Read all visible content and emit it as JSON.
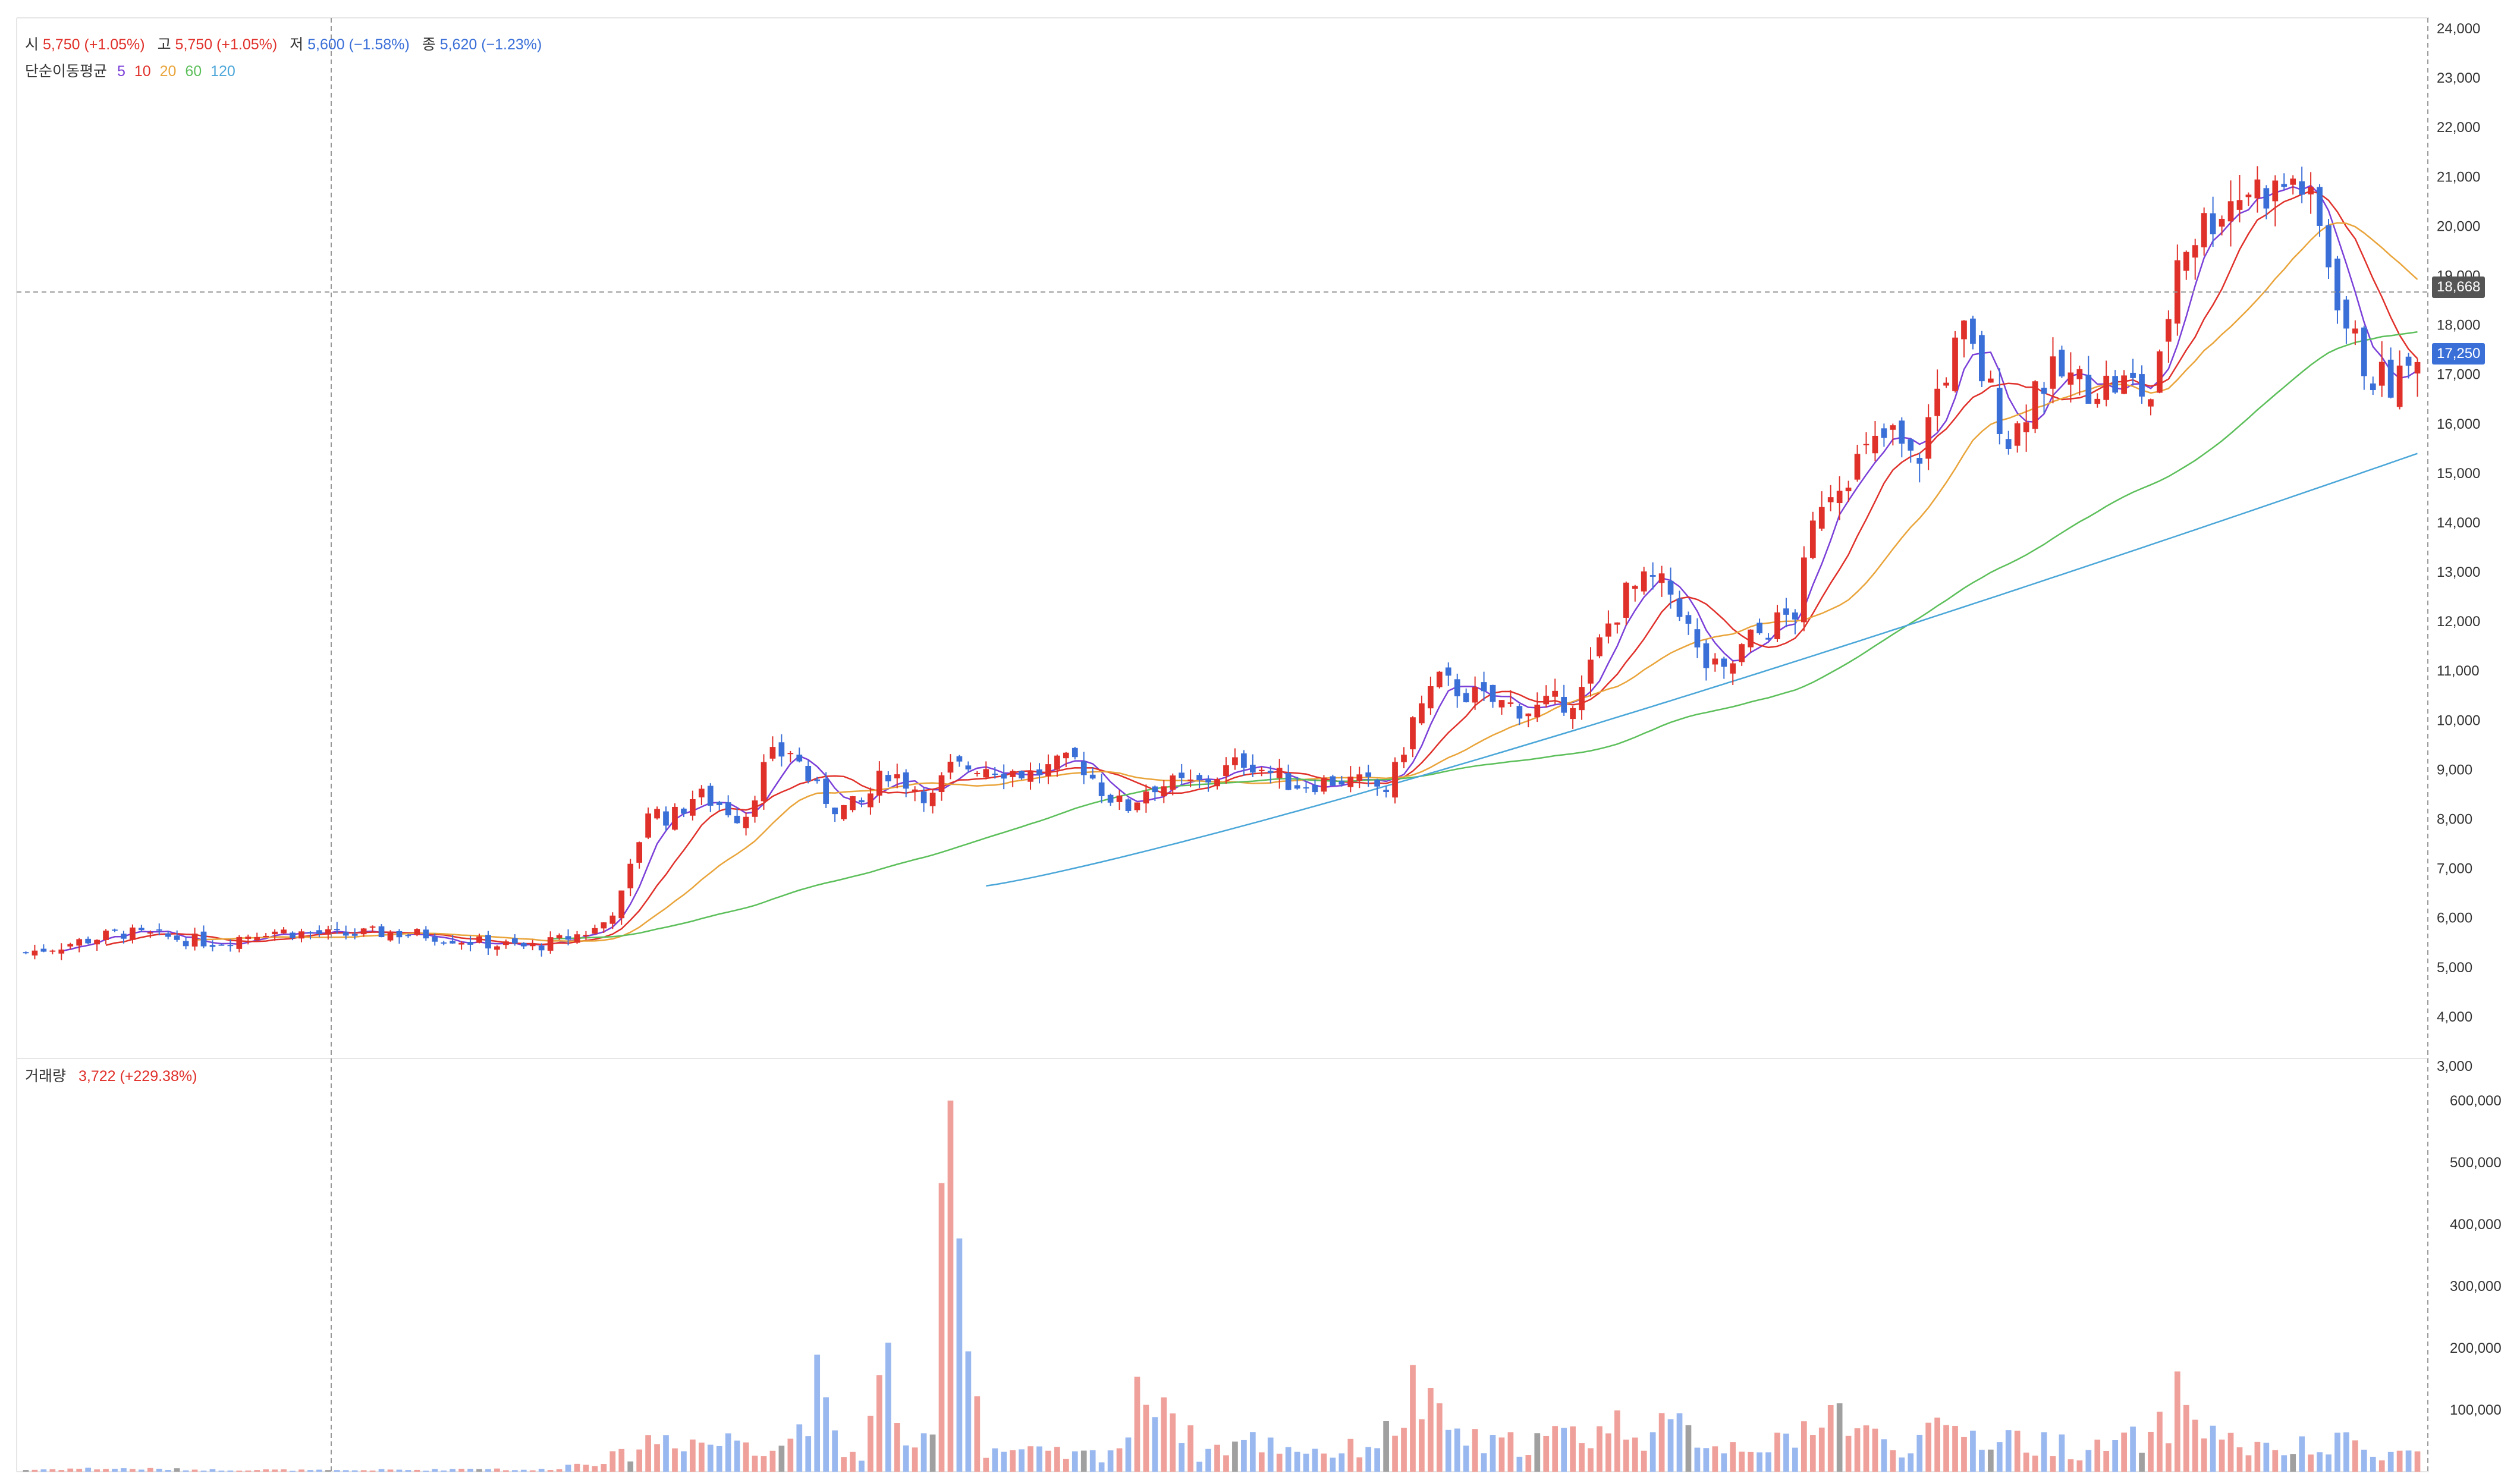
{
  "header": {
    "ohlc": [
      {
        "label": "시",
        "value": "5,750 (+1.05%)",
        "dir": "up"
      },
      {
        "label": "고",
        "value": "5,750 (+1.05%)",
        "dir": "up"
      },
      {
        "label": "저",
        "value": "5,600 (−1.58%)",
        "dir": "dn"
      },
      {
        "label": "종",
        "value": "5,620 (−1.23%)",
        "dir": "dn"
      }
    ],
    "ma_title": "단순이동평균",
    "ma_periods": [
      {
        "p": "5",
        "color": "#7a3fd8"
      },
      {
        "p": "10",
        "color": "#e0302a"
      },
      {
        "p": "20",
        "color": "#e9a43a"
      },
      {
        "p": "60",
        "color": "#5cbf5a"
      },
      {
        "p": "120",
        "color": "#4aa6d8"
      }
    ],
    "volume_title": "거래량",
    "volume_value": "3,722 (+229.38%)"
  },
  "price_axis": {
    "ticks": [
      "3,000",
      "4,000",
      "5,000",
      "6,000",
      "7,000",
      "8,000",
      "9,000",
      "10,000",
      "11,000",
      "12,000",
      "13,000",
      "14,000",
      "15,000",
      "16,000",
      "17,000",
      "18,000",
      "19,000",
      "20,000",
      "21,000",
      "22,000",
      "23,000",
      "24,000"
    ],
    "crosshair_tag": "18,668",
    "last_price_tag": "17,250"
  },
  "volume_axis": {
    "ticks": [
      "100,000",
      "200,000",
      "300,000",
      "400,000",
      "500,000",
      "600,000"
    ]
  },
  "colors": {
    "up": "#e0302a",
    "down": "#3a6fd8",
    "vol_up": "#f0a09a",
    "vol_down": "#9ab8f0",
    "vol_flat": "#a0a0a0",
    "grid_dash": "#999999"
  },
  "chart_data": {
    "type": "candlestick",
    "price_range": [
      3000,
      24000
    ],
    "volume_range": [
      0,
      620000
    ],
    "crosshair_price": 18668,
    "last_price": 17250,
    "ma_periods": [
      5,
      10,
      20,
      60,
      120
    ],
    "ma120_start_index": 0.4,
    "anchors": [
      [
        0,
        5300,
        3000
      ],
      [
        0.02,
        5500,
        5000
      ],
      [
        0.04,
        5700,
        5000
      ],
      [
        0.06,
        5600,
        4000
      ],
      [
        0.08,
        5500,
        3000
      ],
      [
        0.1,
        5750,
        3000
      ],
      [
        0.13,
        5650,
        2000
      ],
      [
        0.15,
        5700,
        3000
      ],
      [
        0.17,
        5650,
        3000
      ],
      [
        0.19,
        5500,
        6000
      ],
      [
        0.21,
        5400,
        2000
      ],
      [
        0.22,
        5500,
        5000
      ],
      [
        0.24,
        5800,
        20000
      ],
      [
        0.25,
        6500,
        25000
      ],
      [
        0.26,
        8200,
        50000
      ],
      [
        0.27,
        8000,
        60000
      ],
      [
        0.28,
        8500,
        50000
      ],
      [
        0.29,
        8300,
        45000
      ],
      [
        0.3,
        8000,
        60000
      ],
      [
        0.31,
        9200,
        40000
      ],
      [
        0.32,
        9400,
        50000
      ],
      [
        0.33,
        8600,
        140000
      ],
      [
        0.34,
        8200,
        30000
      ],
      [
        0.35,
        8300,
        30000
      ],
      [
        0.36,
        9000,
        175000
      ],
      [
        0.37,
        8700,
        20000
      ],
      [
        0.38,
        8400,
        60000
      ],
      [
        0.385,
        9000,
        600000
      ],
      [
        0.4,
        9100,
        40000
      ],
      [
        0.42,
        8900,
        30000
      ],
      [
        0.44,
        9200,
        25000
      ],
      [
        0.45,
        8600,
        30000
      ],
      [
        0.46,
        8200,
        50000
      ],
      [
        0.47,
        8700,
        170000
      ],
      [
        0.49,
        8700,
        30000
      ],
      [
        0.51,
        9200,
        50000
      ],
      [
        0.53,
        8700,
        40000
      ],
      [
        0.55,
        8800,
        30000
      ],
      [
        0.57,
        8600,
        60000
      ],
      [
        0.58,
        10000,
        130000
      ],
      [
        0.59,
        10800,
        80000
      ],
      [
        0.61,
        10400,
        40000
      ],
      [
        0.63,
        10200,
        50000
      ],
      [
        0.65,
        10500,
        60000
      ],
      [
        0.66,
        11800,
        70000
      ],
      [
        0.67,
        12600,
        80000
      ],
      [
        0.68,
        12800,
        60000
      ],
      [
        0.69,
        12500,
        70000
      ],
      [
        0.7,
        11200,
        60000
      ],
      [
        0.71,
        10900,
        40000
      ],
      [
        0.72,
        11600,
        50000
      ],
      [
        0.74,
        12200,
        40000
      ],
      [
        0.75,
        14500,
        120000
      ],
      [
        0.76,
        15000,
        90000
      ],
      [
        0.77,
        15400,
        60000
      ],
      [
        0.78,
        15800,
        40000
      ],
      [
        0.79,
        15100,
        50000
      ],
      [
        0.8,
        16800,
        60000
      ],
      [
        0.81,
        17800,
        70000
      ],
      [
        0.82,
        16800,
        50000
      ],
      [
        0.83,
        15600,
        60000
      ],
      [
        0.84,
        16800,
        40000
      ],
      [
        0.85,
        17000,
        50000
      ],
      [
        0.86,
        16800,
        30000
      ],
      [
        0.88,
        16800,
        50000
      ],
      [
        0.89,
        16500,
        50000
      ],
      [
        0.9,
        19500,
        120000
      ],
      [
        0.91,
        20000,
        80000
      ],
      [
        0.92,
        20500,
        50000
      ],
      [
        0.93,
        20800,
        40000
      ],
      [
        0.94,
        20700,
        30000
      ],
      [
        0.95,
        21000,
        40000
      ],
      [
        0.96,
        19800,
        30000
      ],
      [
        0.97,
        18000,
        50000
      ],
      [
        0.98,
        17000,
        40000
      ],
      [
        0.99,
        16800,
        30000
      ],
      [
        1.0,
        17250,
        30000
      ]
    ]
  }
}
